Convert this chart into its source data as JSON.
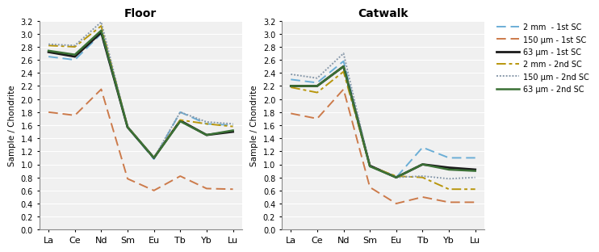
{
  "elements": [
    "La",
    "Ce",
    "Nd",
    "Sm",
    "Eu",
    "Tb",
    "Yb",
    "Lu"
  ],
  "floor": {
    "2mm_1st": [
      2.65,
      2.6,
      3.0,
      1.57,
      1.08,
      1.8,
      1.62,
      1.6
    ],
    "150um_1st": [
      1.8,
      1.75,
      2.15,
      0.78,
      0.6,
      0.82,
      0.63,
      0.62
    ],
    "63um_1st": [
      2.72,
      2.65,
      3.02,
      1.57,
      1.1,
      1.67,
      1.45,
      1.5
    ],
    "2mm_2nd": [
      2.82,
      2.8,
      3.12,
      1.58,
      1.1,
      1.68,
      1.62,
      1.58
    ],
    "150um_2nd": [
      2.84,
      2.82,
      3.18,
      1.58,
      1.1,
      1.8,
      1.65,
      1.62
    ],
    "63um_2nd": [
      2.74,
      2.68,
      3.05,
      1.57,
      1.1,
      1.66,
      1.45,
      1.52
    ]
  },
  "catwalk": {
    "2mm_1st": [
      2.3,
      2.25,
      2.58,
      0.98,
      0.8,
      1.26,
      1.1,
      1.1
    ],
    "150um_1st": [
      1.78,
      1.7,
      2.15,
      0.65,
      0.4,
      0.5,
      0.42,
      0.42
    ],
    "63um_1st": [
      2.2,
      2.2,
      2.5,
      0.98,
      0.8,
      1.0,
      0.95,
      0.92
    ],
    "2mm_2nd": [
      2.18,
      2.1,
      2.42,
      0.97,
      0.82,
      0.8,
      0.62,
      0.62
    ],
    "150um_2nd": [
      2.38,
      2.32,
      2.7,
      0.97,
      0.8,
      0.82,
      0.78,
      0.8
    ],
    "63um_2nd": [
      2.2,
      2.2,
      2.5,
      0.97,
      0.8,
      1.0,
      0.92,
      0.9
    ]
  },
  "colors": {
    "2mm_1st": "#6baed6",
    "150um_1st": "#cc7a4a",
    "63um_1st": "#1a1a1a",
    "2mm_2nd": "#b8960c",
    "150um_2nd": "#8899aa",
    "63um_2nd": "#3a7035"
  },
  "legend_labels": [
    "2 mm  - 1st SC",
    "150 μm - 1st SC",
    "63 μm - 1st SC",
    "2 mm - 2nd SC",
    "150 μm - 2nd SC",
    "63 μm - 2nd SC"
  ],
  "ylim": [
    0,
    3.2
  ],
  "yticks": [
    0,
    0.2,
    0.4,
    0.6,
    0.8,
    1.0,
    1.2,
    1.4,
    1.6,
    1.8,
    2.0,
    2.2,
    2.4,
    2.6,
    2.8,
    3.0,
    3.2
  ],
  "ylabel": "Sample / Chondrite",
  "title_floor": "Floor",
  "title_catwalk": "Catwalk",
  "bg_color": "#f0f0f0",
  "grid_color": "#ffffff"
}
